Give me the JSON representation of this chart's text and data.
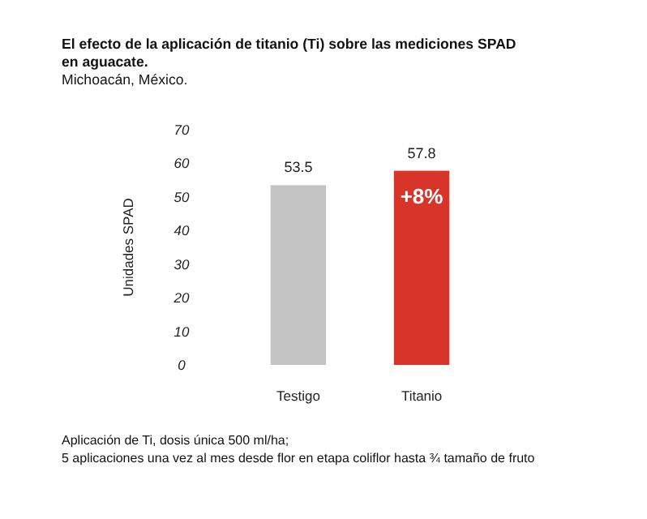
{
  "chart_data": {
    "type": "bar",
    "title": "El efecto de la aplicación de titanio (Ti) sobre las mediciones SPAD en aguacate.",
    "subtitle": "Michoacán, México.",
    "ylabel": "Unidades SPAD",
    "categories": [
      "Testigo",
      "Titanio"
    ],
    "values": [
      53.5,
      57.8
    ],
    "colors": [
      "#c4c4c4",
      "#d8352a"
    ],
    "ylim": [
      0,
      70
    ],
    "yticks": [
      0,
      10,
      20,
      30,
      40,
      50,
      60,
      70
    ],
    "data_labels": true,
    "grid": false,
    "annotations": [
      "+8%",
      "Aplicación de Ti, dosis única 500 ml/ha;",
      "5 aplicaciones una vez al mes desde flor en etapa coliflor hasta ¾ tamaño de fruto"
    ]
  }
}
